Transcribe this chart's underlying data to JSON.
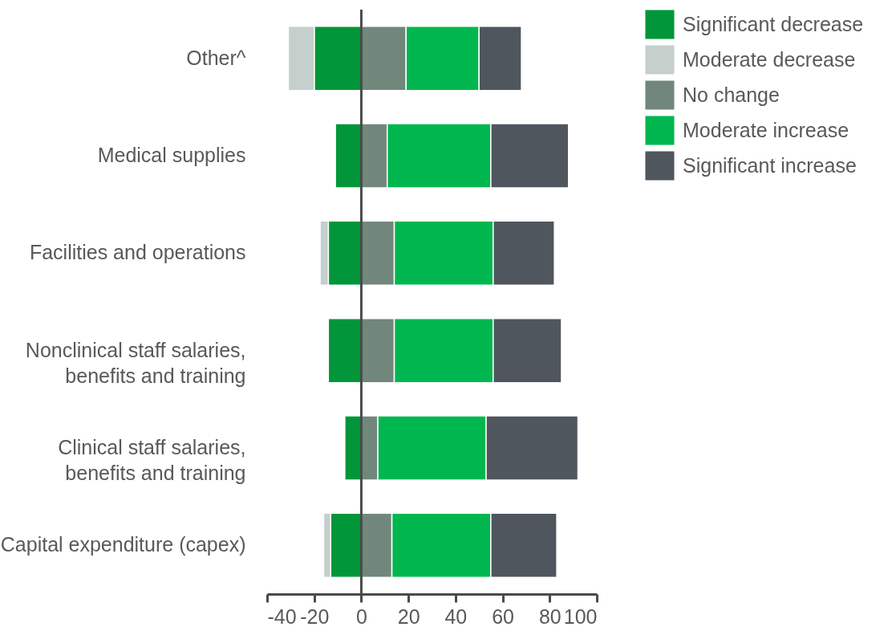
{
  "chart_data": {
    "type": "bar",
    "orientation": "horizontal",
    "stacked": true,
    "categories": [
      "Other^",
      "Medical supplies",
      "Facilities and operations",
      "Nonclinical staff salaries,\nbenefits and training",
      "Clinical staff salaries,\nbenefits and training",
      "Capital expenditure (capex)"
    ],
    "series": [
      {
        "name": "Significant decrease",
        "color": "#009639",
        "values": [
          -20,
          -11,
          -14,
          -14,
          -7,
          -13
        ]
      },
      {
        "name": "Moderate decrease",
        "color": "#c5cfcc",
        "values": [
          -11,
          null,
          -3.5,
          null,
          null,
          -3
        ]
      },
      {
        "name": "No change",
        "color": "#72877b",
        "values": [
          19,
          11,
          14,
          14,
          7,
          13
        ]
      },
      {
        "name": "Moderate increase",
        "color": "#00b74f",
        "values": [
          31,
          44,
          42,
          42,
          46,
          42
        ]
      },
      {
        "name": "Significant increase",
        "color": "#4f565e",
        "values": [
          18,
          33,
          26,
          29,
          39,
          28
        ]
      }
    ],
    "xlim": [
      -40,
      100
    ],
    "xticks": [
      -40,
      -20,
      0,
      20,
      40,
      60,
      80,
      100
    ],
    "legend": "top right"
  }
}
